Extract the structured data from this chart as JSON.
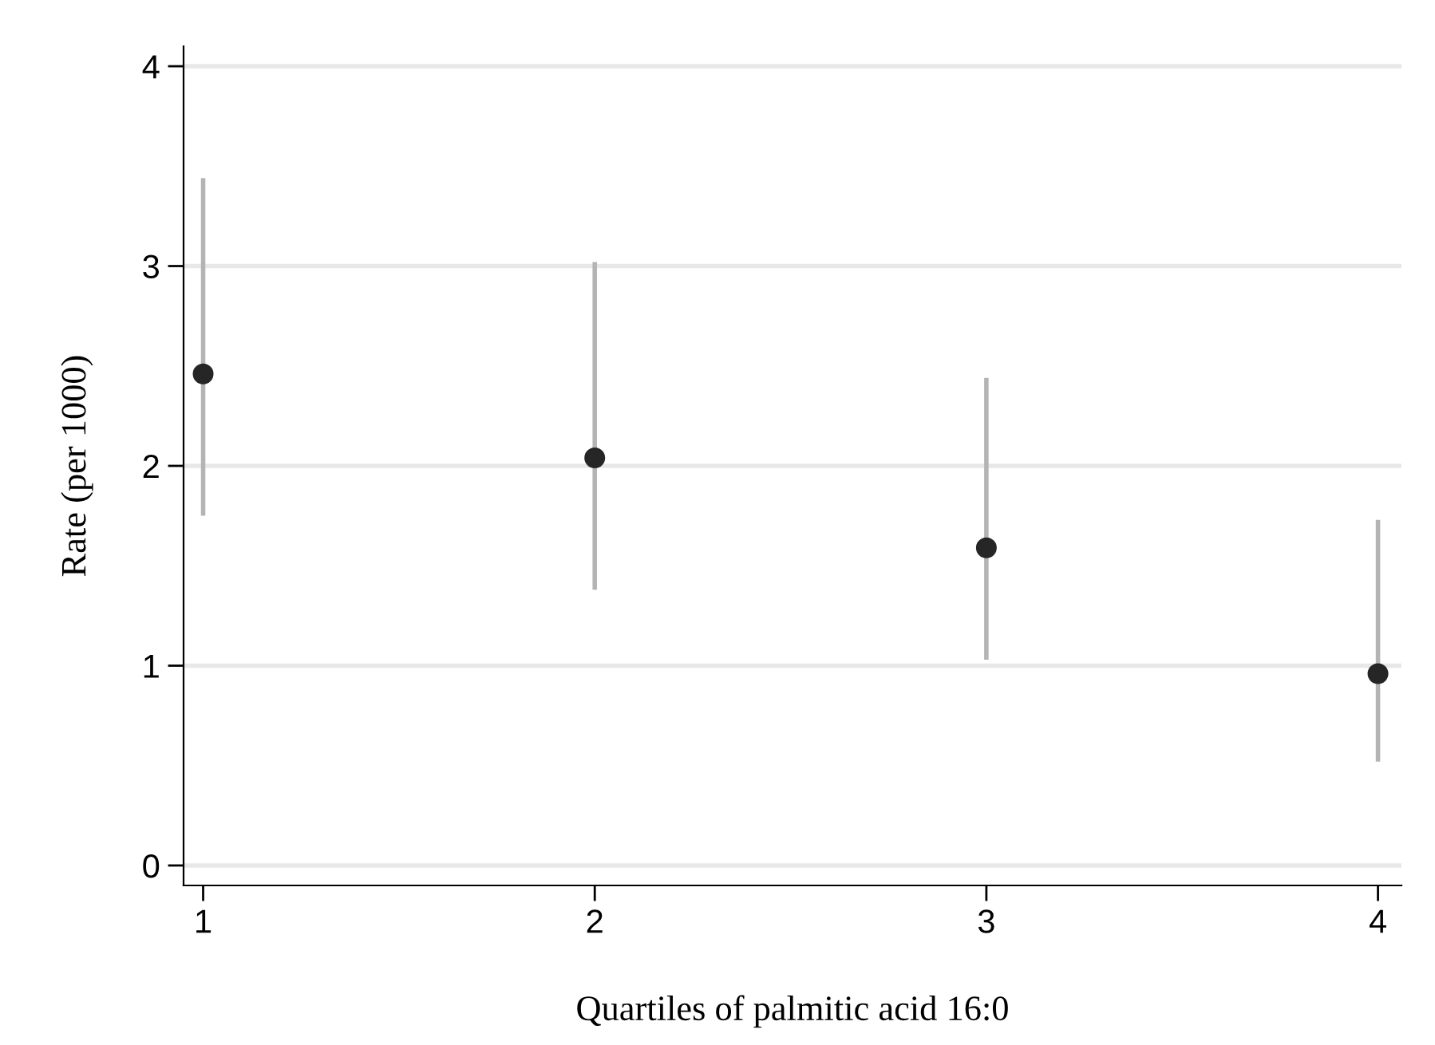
{
  "chart_data": {
    "type": "scatter",
    "xlabel": "Quartiles of palmitic acid 16:0",
    "ylabel": "Rate (per 1000)",
    "x": [
      1,
      2,
      3,
      4
    ],
    "series": [
      {
        "color": "#262626",
        "values": [
          2.46,
          2.04,
          1.59,
          0.96
        ],
        "errors": [
          [
            1.75,
            3.44
          ],
          [
            1.38,
            3.02
          ],
          [
            1.03,
            2.44
          ],
          [
            0.52,
            1.73
          ]
        ]
      }
    ],
    "xlim": [
      0.95,
      4.06
    ],
    "xticks": [
      1,
      2,
      3,
      4
    ],
    "ylim": [
      -0.1,
      4.1
    ],
    "yticks": [
      0,
      1,
      2,
      3,
      4
    ],
    "grid": "y",
    "marker": "circle"
  }
}
